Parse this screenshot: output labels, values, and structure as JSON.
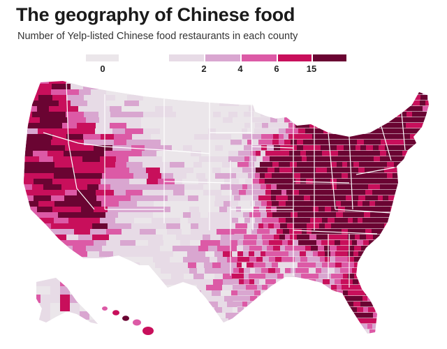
{
  "title": "The geography of Chinese food",
  "subtitle": "Number of Yelp-listed Chinese food restaurants in each county",
  "legend": {
    "bins": [
      {
        "label": "0",
        "color": "#ebe6ea"
      },
      {
        "label": "2",
        "color": "#e7dbe6"
      },
      {
        "label": "4",
        "color": "#d9a6d0"
      },
      {
        "label": "6",
        "color": "#dc5aa6"
      },
      {
        "label": "15",
        "color": "#c80f5b"
      },
      {
        "label": "",
        "color": "#6a0432"
      }
    ]
  },
  "colors": {
    "zero": "#ebe6ea",
    "low": "#e7dbe6",
    "mid": "#d9a6d0",
    "high": "#dc5aa6",
    "veryhigh": "#c80f5b",
    "top": "#6a0432",
    "state_border": "#ffffff"
  }
}
